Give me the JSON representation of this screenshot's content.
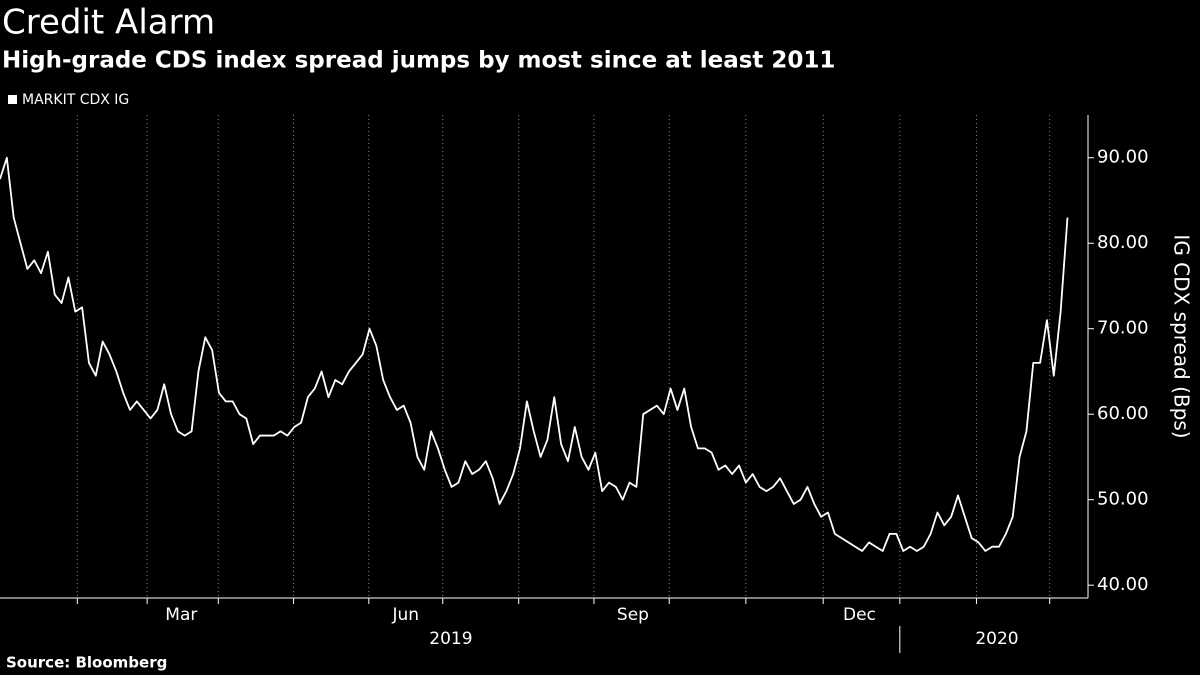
{
  "chart_data": {
    "type": "line",
    "title": "Credit Alarm",
    "subtitle": "High-grade CDS index spread jumps by most since at least 2011",
    "source": "Source: Bloomberg",
    "y_axis_label": "IG CDX spread (Bps)",
    "series": [
      {
        "name": "MARKIT CDX IG",
        "color": "#ffffff",
        "values": [
          87.5,
          90,
          83,
          80,
          77,
          78,
          76.5,
          79,
          74,
          73,
          76,
          72,
          72.5,
          66,
          64.5,
          68.5,
          67,
          65,
          62.5,
          60.5,
          61.5,
          60.5,
          59.5,
          60.5,
          63.5,
          60,
          58,
          57.5,
          58,
          65,
          69,
          67.5,
          62.5,
          61.5,
          61.5,
          60,
          59.5,
          56.5,
          57.5,
          57.5,
          57.5,
          58,
          57.5,
          58.5,
          59,
          62,
          63,
          65,
          62,
          64,
          63.5,
          65,
          66,
          67,
          70,
          68,
          64,
          62,
          60.5,
          61,
          59,
          55,
          53.5,
          58,
          56,
          53.5,
          51.5,
          52,
          54.5,
          53,
          53.5,
          54.5,
          52.5,
          49.5,
          51,
          53,
          56,
          61.5,
          58,
          55,
          57,
          62,
          56.5,
          54.5,
          58.5,
          55,
          53.5,
          55.5,
          51,
          52,
          51.5,
          50,
          52,
          51.5,
          60,
          60.5,
          61,
          60,
          63,
          60.5,
          63,
          58.5,
          56,
          56,
          55.5,
          53.5,
          54,
          53,
          54,
          52,
          53,
          51.5,
          51,
          51.5,
          52.5,
          51,
          49.5,
          50,
          51.5,
          49.5,
          48,
          48.5,
          46,
          45.5,
          45,
          44.5,
          44,
          45,
          44.5,
          44,
          46,
          46,
          44,
          44.5,
          44,
          44.5,
          46,
          48.5,
          47,
          48,
          50.5,
          48,
          45.5,
          45,
          44,
          44.5,
          44.5,
          46,
          48,
          55,
          58,
          66,
          66,
          71,
          64.5,
          72,
          83
        ]
      }
    ],
    "xlim": [
      0,
      159
    ],
    "xticks": [
      11.3,
      21.5,
      31.9,
      42.9,
      53.9,
      64.7,
      75.8,
      86.8,
      97.8,
      109,
      120.3,
      131.5,
      142.7,
      153.4
    ],
    "xtick_labels": [
      {
        "value": 26.5,
        "label": "Mar"
      },
      {
        "value": 59.3,
        "label": "Jun"
      },
      {
        "value": 92.5,
        "label": "Sep"
      },
      {
        "value": 125.6,
        "label": "Dec"
      }
    ],
    "year_labels": [
      {
        "value": 65.9,
        "label": "2019"
      },
      {
        "value": 145.7,
        "label": "2020"
      }
    ],
    "year_dividers": [
      131.5
    ],
    "ylim": [
      38.5,
      95
    ],
    "yticks": [
      {
        "value": 40,
        "label": "40.00"
      },
      {
        "value": 50,
        "label": "50.00"
      },
      {
        "value": 60,
        "label": "60.00"
      },
      {
        "value": 70,
        "label": "70.00"
      },
      {
        "value": 80,
        "label": "80.00"
      },
      {
        "value": 90,
        "label": "90.00"
      }
    ],
    "y_axis_side": "right",
    "grid": "x-dotted"
  }
}
